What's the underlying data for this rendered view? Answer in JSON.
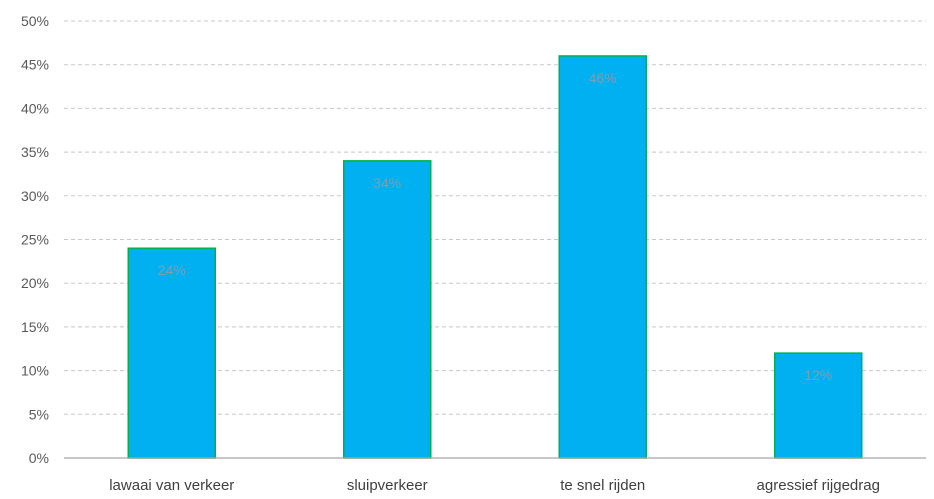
{
  "chart_data": {
    "type": "bar",
    "title": "",
    "xlabel": "",
    "ylabel": "",
    "categories": [
      "lawaai van verkeer",
      "sluipverkeer",
      "te snel rijden",
      "agressief rijgedrag"
    ],
    "values": [
      24,
      34,
      46,
      12
    ],
    "data_labels": [
      "24%",
      "34%",
      "46%",
      "12%"
    ],
    "ylim": [
      0,
      50
    ],
    "y_ticks": [
      0,
      5,
      10,
      15,
      20,
      25,
      30,
      35,
      40,
      45,
      50
    ],
    "y_tick_labels": [
      "0%",
      "5%",
      "10%",
      "15%",
      "20%",
      "25%",
      "30%",
      "35%",
      "40%",
      "45%",
      "50%"
    ],
    "grid": true,
    "legend": "none",
    "colors": {
      "bar_fill": "#00b0f0",
      "bar_stroke": "#00b050",
      "data_label": "#7f9fb0",
      "gridline": "#c8c8c8",
      "axis": "#a6a6a6",
      "tick_text": "#595959",
      "category_text": "#404040"
    }
  }
}
